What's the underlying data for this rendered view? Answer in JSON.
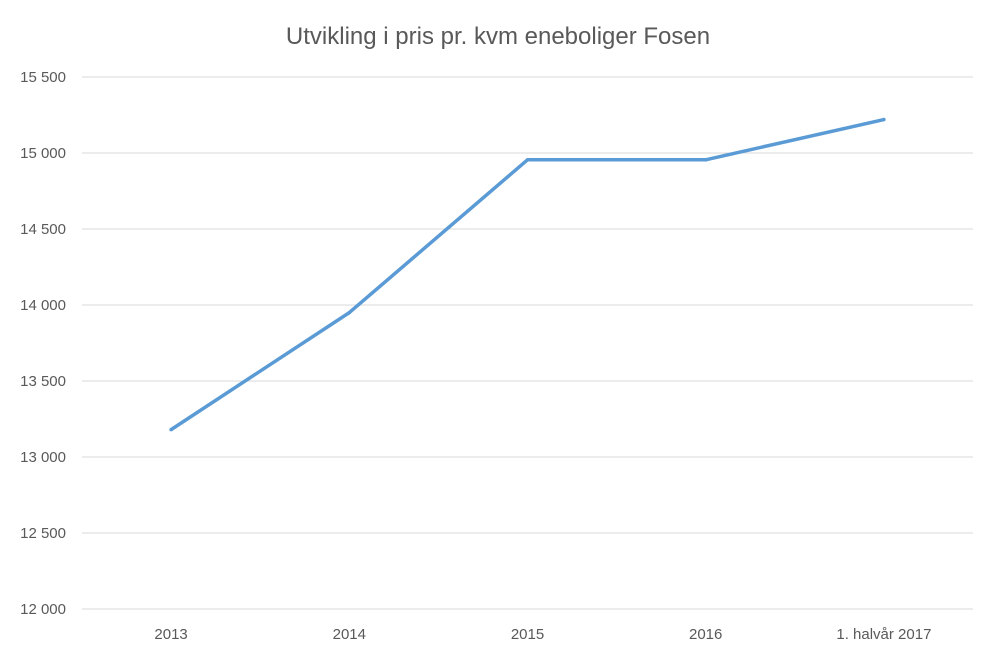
{
  "chart_data": {
    "type": "line",
    "title": "Utvikling i pris pr. kvm eneboliger Fosen",
    "xlabel": "",
    "ylabel": "",
    "categories": [
      "2013",
      "2014",
      "2015",
      "2016",
      "1. halvår 2017"
    ],
    "series": [
      {
        "values": [
          13180,
          13950,
          14955,
          14955,
          15220
        ],
        "color": "#5b9bd5"
      }
    ],
    "ylim": [
      12000,
      15500
    ],
    "yticks": [
      12000,
      12500,
      13000,
      13500,
      14000,
      14500,
      15000,
      15500
    ],
    "ytick_labels": [
      "12 000",
      "12 500",
      "13 000",
      "13 500",
      "14 000",
      "14 500",
      "15 000",
      "15 500"
    ],
    "grid": true,
    "legend": "none"
  }
}
